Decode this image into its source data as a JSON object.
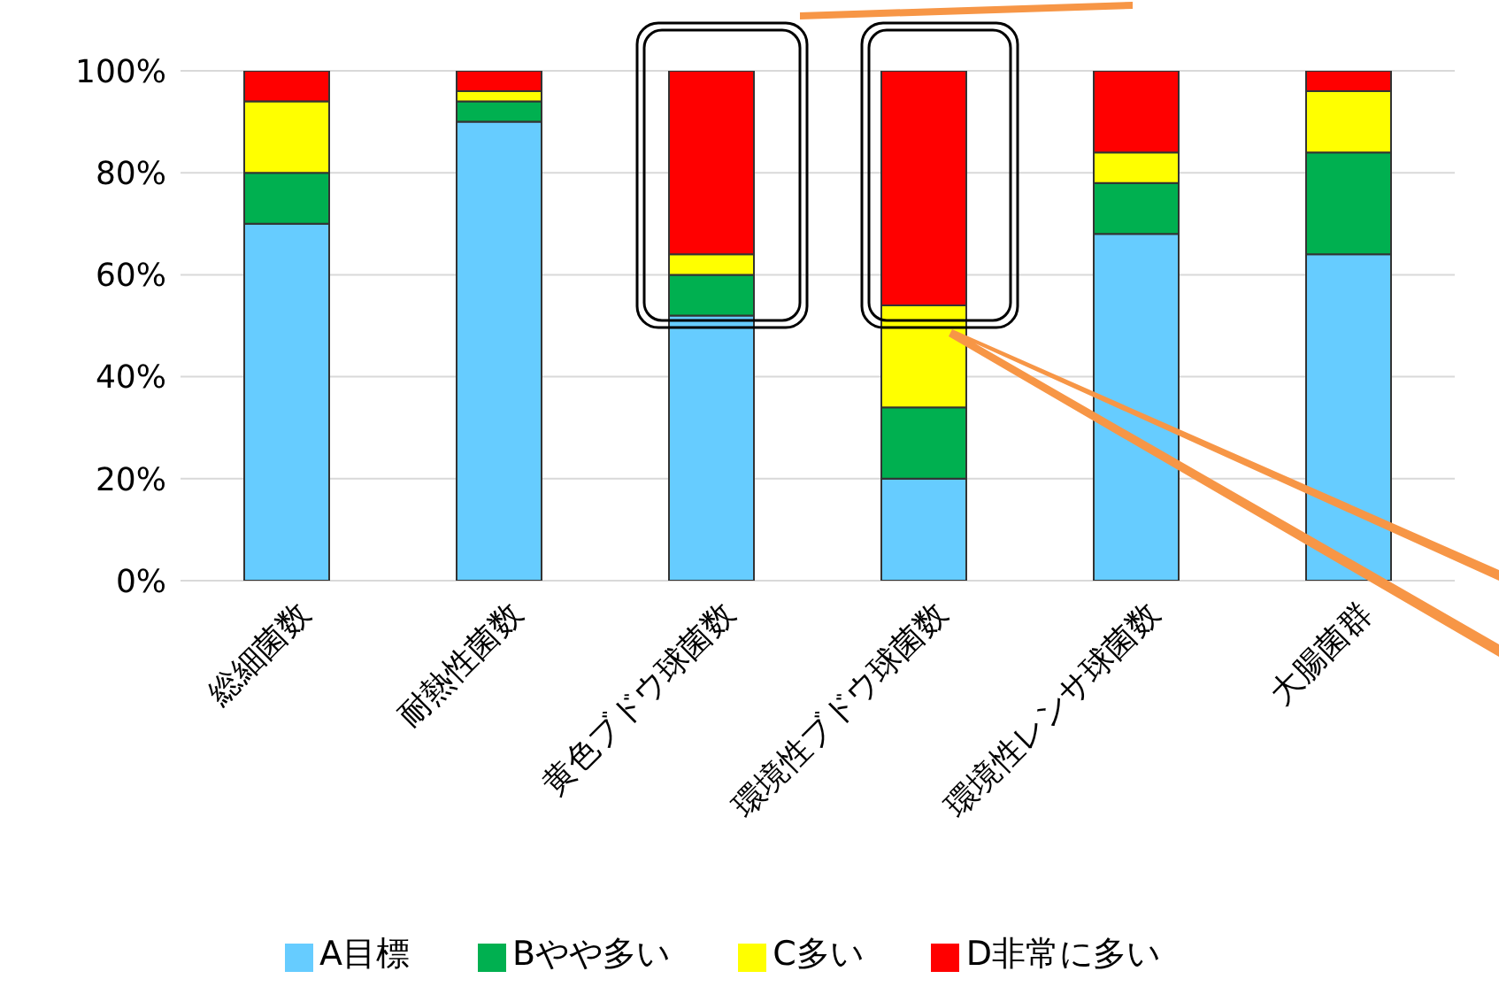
{
  "chart_data": {
    "type": "bar",
    "stacked": true,
    "categories": [
      "総細菌数",
      "耐熱性菌数",
      "黄色ブドウ球菌数",
      "環境性ブドウ球菌数",
      "環境性レンサ球菌数",
      "大腸菌群"
    ],
    "series": [
      {
        "name": "A目標",
        "color": "#66ccff",
        "values": [
          70,
          90,
          52,
          20,
          68,
          64
        ]
      },
      {
        "name": "Bやや多い",
        "color": "#00b050",
        "values": [
          10,
          4,
          8,
          14,
          10,
          20
        ]
      },
      {
        "name": "C多い",
        "color": "#ffff00",
        "values": [
          14,
          2,
          4,
          20,
          6,
          12
        ]
      },
      {
        "name": "D非常に多い",
        "color": "#ff0000",
        "values": [
          6,
          4,
          36,
          46,
          16,
          4
        ]
      }
    ],
    "ylim": [
      0,
      100
    ],
    "yticks": [
      {
        "value": 0,
        "label": "0%"
      },
      {
        "value": 20,
        "label": "20%"
      },
      {
        "value": 40,
        "label": "40%"
      },
      {
        "value": 60,
        "label": "60%"
      },
      {
        "value": 80,
        "label": "80%"
      },
      {
        "value": 100,
        "label": "100%"
      }
    ],
    "grid": "y",
    "legend": "bottom"
  }
}
